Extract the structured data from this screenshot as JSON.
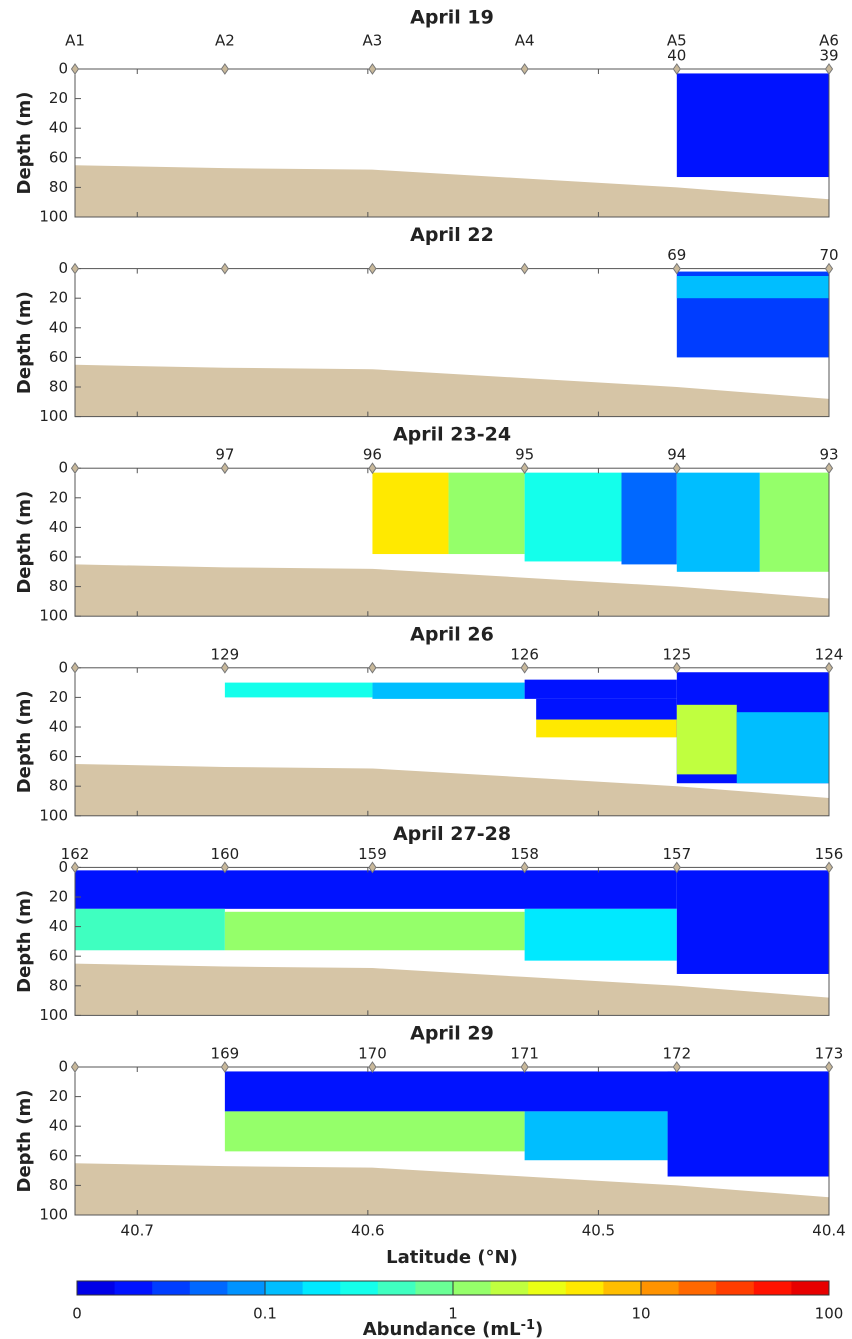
{
  "shared": {
    "stations": [
      {
        "label": "A1",
        "lat": 40.727
      },
      {
        "label": "A2",
        "lat": 40.662
      },
      {
        "label": "A3",
        "lat": 40.598
      },
      {
        "label": "A4",
        "lat": 40.532
      },
      {
        "label": "A5",
        "lat": 40.466
      },
      {
        "label": "A6",
        "lat": 40.4
      }
    ],
    "bathymetry": {
      "lat": [
        40.727,
        40.662,
        40.598,
        40.532,
        40.466,
        40.4
      ],
      "depth": [
        65,
        67,
        68,
        74,
        80,
        88
      ]
    },
    "xlim": [
      40.727,
      40.4
    ],
    "xticks": [
      40.7,
      40.6,
      40.5,
      40.4
    ],
    "xlabel": "Latitude (°N)",
    "colorbar": {
      "lim": [
        0.01,
        100
      ],
      "ticks": [
        {
          "value": 0.01,
          "label": "0"
        },
        0.1,
        1,
        10,
        100
      ],
      "label": {
        "text": "Abundance (mL",
        "sup": "-1",
        "end": ")"
      }
    }
  },
  "chart_data": [
    {
      "type": "section",
      "title": "April 19",
      "ylabel": "Depth (m)",
      "ylim": [
        0,
        100
      ],
      "yticks": [
        0,
        20,
        40,
        60,
        80,
        100
      ],
      "casts": [
        {
          "label": 40,
          "lat": 40.466
        },
        {
          "label": 39,
          "lat": 40.4
        }
      ],
      "layers": [
        {
          "x": [
            40.466,
            40.4
          ],
          "depth": [
            3,
            73
          ],
          "value": 0.02
        }
      ]
    },
    {
      "type": "section",
      "title": "April 22",
      "ylabel": "Depth (m)",
      "ylim": [
        0,
        100
      ],
      "yticks": [
        0,
        20,
        40,
        60,
        80,
        100
      ],
      "casts": [
        {
          "label": 69,
          "lat": 40.466
        },
        {
          "label": 70,
          "lat": 40.4
        }
      ],
      "layers": [
        {
          "x": [
            40.466,
            40.4
          ],
          "depth": [
            2,
            60
          ],
          "value": 0.03
        },
        {
          "x": [
            40.466,
            40.4
          ],
          "depth": [
            5,
            20
          ],
          "value": 0.1
        }
      ]
    },
    {
      "type": "section",
      "title": "April 23-24",
      "ylabel": "Depth (m)",
      "ylim": [
        0,
        100
      ],
      "yticks": [
        0,
        20,
        40,
        60,
        80,
        100
      ],
      "casts": [
        {
          "label": 97,
          "lat": 40.662
        },
        {
          "label": 96,
          "lat": 40.598
        },
        {
          "label": 95,
          "lat": 40.532
        },
        {
          "label": 94,
          "lat": 40.466
        },
        {
          "label": 93,
          "lat": 40.4
        }
      ],
      "layers": [
        {
          "x": [
            40.598,
            40.565
          ],
          "depth": [
            3,
            58
          ],
          "value": 5
        },
        {
          "x": [
            40.565,
            40.532
          ],
          "depth": [
            3,
            58
          ],
          "value": 1.5
        },
        {
          "x": [
            40.532,
            40.49
          ],
          "depth": [
            3,
            63
          ],
          "value": 0.3
        },
        {
          "x": [
            40.49,
            40.466
          ],
          "depth": [
            3,
            65
          ],
          "value": 0.05
        },
        {
          "x": [
            40.466,
            40.43
          ],
          "depth": [
            3,
            70
          ],
          "value": 0.15
        },
        {
          "x": [
            40.43,
            40.4
          ],
          "depth": [
            3,
            70
          ],
          "value": 1.5
        }
      ]
    },
    {
      "type": "section",
      "title": "April 26",
      "ylabel": "Depth (m)",
      "ylim": [
        0,
        100
      ],
      "yticks": [
        0,
        20,
        40,
        60,
        80,
        100
      ],
      "casts": [
        {
          "label": 129,
          "lat": 40.662
        },
        {
          "label": 126,
          "lat": 40.532
        },
        {
          "label": 125,
          "lat": 40.466
        },
        {
          "label": 124,
          "lat": 40.4
        }
      ],
      "layers": [
        {
          "x": [
            40.662,
            40.598
          ],
          "depth": [
            10,
            20
          ],
          "value": 0.3
        },
        {
          "x": [
            40.598,
            40.532
          ],
          "depth": [
            10,
            21
          ],
          "value": 0.1
        },
        {
          "x": [
            40.532,
            40.466
          ],
          "depth": [
            8,
            21
          ],
          "value": 0.02
        },
        {
          "x": [
            40.527,
            40.466
          ],
          "depth": [
            21,
            35
          ],
          "value": 0.02
        },
        {
          "x": [
            40.527,
            40.466
          ],
          "depth": [
            35,
            47
          ],
          "value": 5
        },
        {
          "x": [
            40.466,
            40.4
          ],
          "depth": [
            3,
            78
          ],
          "value": 0.02
        },
        {
          "x": [
            40.466,
            40.44
          ],
          "depth": [
            25,
            72
          ],
          "value": 2
        },
        {
          "x": [
            40.44,
            40.4
          ],
          "depth": [
            30,
            78
          ],
          "value": 0.15
        }
      ]
    },
    {
      "type": "section",
      "title": "April 27-28",
      "ylabel": "Depth (m)",
      "ylim": [
        0,
        100
      ],
      "yticks": [
        0,
        20,
        40,
        60,
        80,
        100
      ],
      "casts": [
        {
          "label": 162,
          "lat": 40.727
        },
        {
          "label": 160,
          "lat": 40.662
        },
        {
          "label": 159,
          "lat": 40.598
        },
        {
          "label": 158,
          "lat": 40.532
        },
        {
          "label": 157,
          "lat": 40.466
        },
        {
          "label": 156,
          "lat": 40.4
        }
      ],
      "layers": [
        {
          "x": [
            40.727,
            40.466
          ],
          "depth": [
            2,
            28
          ],
          "value": 0.02
        },
        {
          "x": [
            40.727,
            40.662
          ],
          "depth": [
            28,
            56
          ],
          "value": 0.5
        },
        {
          "x": [
            40.662,
            40.532
          ],
          "depth": [
            30,
            56
          ],
          "value": 1.5
        },
        {
          "x": [
            40.532,
            40.466
          ],
          "depth": [
            28,
            63
          ],
          "value": 0.2
        },
        {
          "x": [
            40.466,
            40.4
          ],
          "depth": [
            2,
            72
          ],
          "value": 0.02
        }
      ]
    },
    {
      "type": "section",
      "title": "April 29",
      "ylabel": "Depth (m)",
      "ylim": [
        0,
        100
      ],
      "yticks": [
        0,
        20,
        40,
        60,
        80,
        100
      ],
      "casts": [
        {
          "label": 169,
          "lat": 40.662
        },
        {
          "label": 170,
          "lat": 40.598
        },
        {
          "label": 171,
          "lat": 40.532
        },
        {
          "label": 172,
          "lat": 40.466
        },
        {
          "label": 173,
          "lat": 40.4
        }
      ],
      "layers": [
        {
          "x": [
            40.662,
            40.4
          ],
          "depth": [
            3,
            30
          ],
          "value": 0.02
        },
        {
          "x": [
            40.662,
            40.532
          ],
          "depth": [
            30,
            57
          ],
          "value": 1.5
        },
        {
          "x": [
            40.532,
            40.47
          ],
          "depth": [
            30,
            63
          ],
          "value": 0.15
        },
        {
          "x": [
            40.47,
            40.4
          ],
          "depth": [
            3,
            74
          ],
          "value": 0.02
        }
      ]
    }
  ]
}
